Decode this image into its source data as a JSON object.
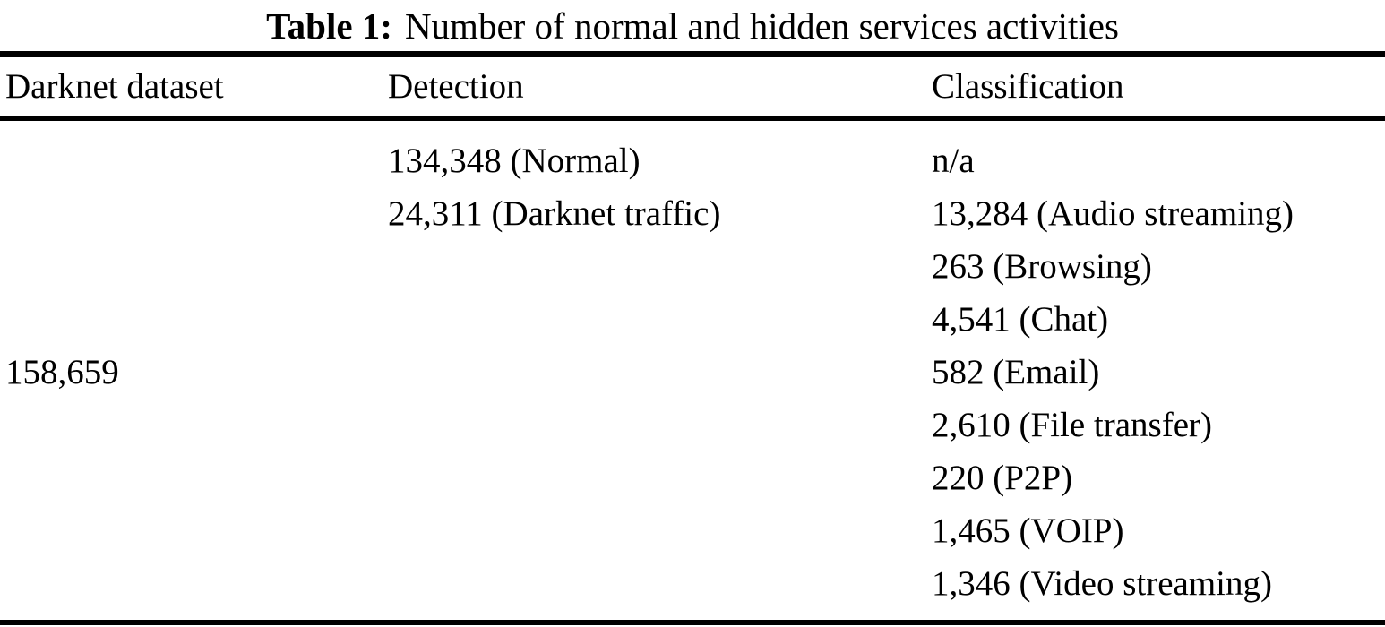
{
  "table": {
    "title": {
      "label": "Table 1:",
      "caption": "Number of normal and hidden services activities"
    },
    "columns": [
      "Darknet dataset",
      "Detection",
      "Classification"
    ],
    "rows": [
      {
        "dataset": "",
        "detection": "134,348 (Normal)",
        "classification": "n/a"
      },
      {
        "dataset": "",
        "detection": "24,311 (Darknet traffic)",
        "classification": "13,284 (Audio streaming)"
      },
      {
        "dataset": "",
        "detection": "",
        "classification": "263 (Browsing)"
      },
      {
        "dataset": "",
        "detection": "",
        "classification": "4,541 (Chat)"
      },
      {
        "dataset": "158,659",
        "detection": "",
        "classification": "582 (Email)"
      },
      {
        "dataset": "",
        "detection": "",
        "classification": "2,610 (File transfer)"
      },
      {
        "dataset": "",
        "detection": "",
        "classification": "220 (P2P)"
      },
      {
        "dataset": "",
        "detection": "",
        "classification": "1,465 (VOIP)"
      },
      {
        "dataset": "",
        "detection": "",
        "classification": "1,346 (Video streaming)"
      }
    ],
    "colors": {
      "text": "#000000",
      "background": "#ffffff",
      "rule": "#000000"
    }
  }
}
